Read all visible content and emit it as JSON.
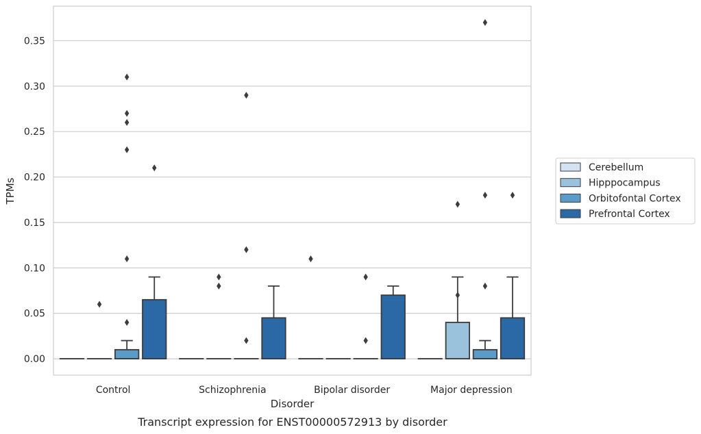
{
  "chart_data": {
    "type": "box",
    "caption": "Transcript expression for ENST00000572913 by disorder",
    "xlabel": "Disorder",
    "ylabel": "TPMs",
    "ylim": [
      -0.018,
      0.388
    ],
    "yticks": [
      "0.00",
      "0.05",
      "0.10",
      "0.15",
      "0.20",
      "0.25",
      "0.30",
      "0.35"
    ],
    "grid": "horizontal",
    "legend_position": "right",
    "categories": [
      "Control",
      "Schizophrenia",
      "Bipolar disorder",
      "Major depression"
    ],
    "series": [
      {
        "name": "Cerebellum",
        "color": "#d4e3f1",
        "boxes": [
          {
            "q1": 0,
            "median": 0,
            "q3": 0,
            "whislo": 0,
            "whishi": 0,
            "fliers": []
          },
          {
            "q1": 0,
            "median": 0,
            "q3": 0,
            "whislo": 0,
            "whishi": 0,
            "fliers": []
          },
          {
            "q1": 0,
            "median": 0,
            "q3": 0,
            "whislo": 0,
            "whishi": 0,
            "fliers": [
              0.11
            ]
          },
          {
            "q1": 0,
            "median": 0,
            "q3": 0,
            "whislo": 0,
            "whishi": 0,
            "fliers": []
          }
        ]
      },
      {
        "name": "Hipppocampus",
        "color": "#9ac2dd",
        "boxes": [
          {
            "q1": 0,
            "median": 0,
            "q3": 0,
            "whislo": 0,
            "whishi": 0,
            "fliers": [
              0.06
            ]
          },
          {
            "q1": 0,
            "median": 0,
            "q3": 0,
            "whislo": 0,
            "whishi": 0,
            "fliers": [
              0.08,
              0.09
            ]
          },
          {
            "q1": 0,
            "median": 0,
            "q3": 0,
            "whislo": 0,
            "whishi": 0,
            "fliers": []
          },
          {
            "q1": 0,
            "median": 0,
            "q3": 0.04,
            "whislo": 0,
            "whishi": 0.09,
            "fliers": [
              0.07,
              0.17
            ]
          }
        ]
      },
      {
        "name": "Orbitofontal Cortex",
        "color": "#5b9bc8",
        "boxes": [
          {
            "q1": 0,
            "median": 0,
            "q3": 0.01,
            "whislo": 0,
            "whishi": 0.02,
            "fliers": [
              0.11,
              0.23,
              0.27,
              0.04,
              0.26,
              0.31
            ]
          },
          {
            "q1": 0,
            "median": 0,
            "q3": 0,
            "whislo": 0,
            "whishi": 0,
            "fliers": [
              0.02,
              0.12,
              0.29
            ]
          },
          {
            "q1": 0,
            "median": 0,
            "q3": 0,
            "whislo": 0,
            "whishi": 0,
            "fliers": [
              0.02,
              0.09
            ]
          },
          {
            "q1": 0,
            "median": 0,
            "q3": 0.01,
            "whislo": 0,
            "whishi": 0.02,
            "fliers": [
              0.37,
              0.18,
              0.08
            ]
          }
        ]
      },
      {
        "name": "Prefrontal Cortex",
        "color": "#2a68a6",
        "boxes": [
          {
            "q1": 0,
            "median": 0,
            "q3": 0.065,
            "whislo": 0,
            "whishi": 0.09,
            "fliers": [
              0.21
            ]
          },
          {
            "q1": 0,
            "median": 0,
            "q3": 0.045,
            "whislo": 0,
            "whishi": 0.08,
            "fliers": []
          },
          {
            "q1": 0,
            "median": 0,
            "q3": 0.07,
            "whislo": 0,
            "whishi": 0.08,
            "fliers": []
          },
          {
            "q1": 0,
            "median": 0,
            "q3": 0.045,
            "whislo": 0,
            "whishi": 0.09,
            "fliers": [
              0.18
            ]
          }
        ]
      }
    ]
  }
}
